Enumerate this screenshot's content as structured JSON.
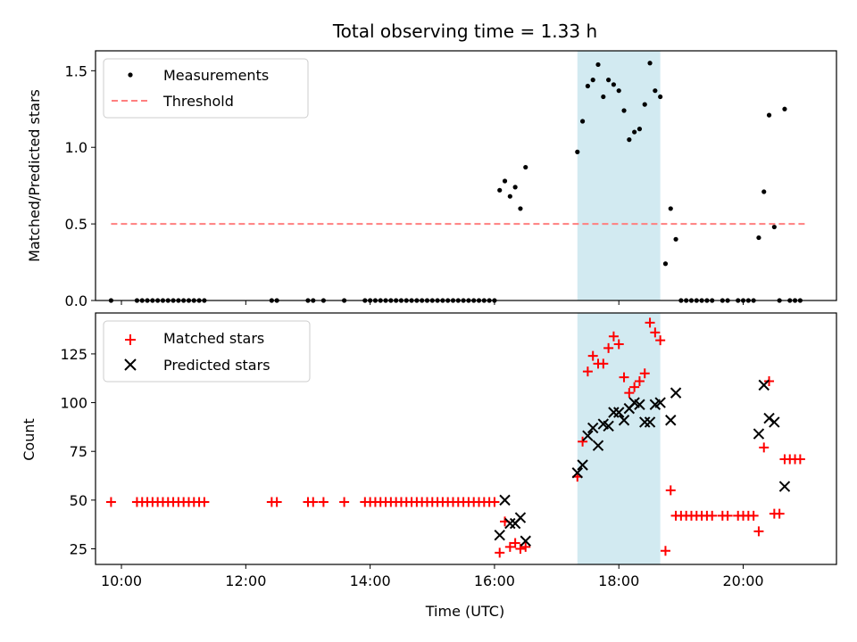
{
  "chart_data": [
    {
      "type": "scatter",
      "title": "Total observing time = 1.33 h",
      "ylabel": "Matched/Predicted stars",
      "xlabel": "",
      "xlim": [
        "09:35",
        "21:30"
      ],
      "ylim": [
        0,
        1.63
      ],
      "yticks": [
        "0.0",
        "0.5",
        "1.0",
        "1.5"
      ],
      "shaded_span": {
        "x0": "17:20",
        "x1": "18:40",
        "color": "#add8e6"
      },
      "legend": {
        "position": "upper left",
        "entries": [
          "Measurements",
          "Threshold"
        ]
      },
      "series": [
        {
          "name": "Measurements",
          "color": "#000000",
          "marker": "dot",
          "points": [
            [
              "09:50",
              0
            ],
            [
              "10:15",
              0
            ],
            [
              "10:20",
              0
            ],
            [
              "10:25",
              0
            ],
            [
              "10:30",
              0
            ],
            [
              "10:35",
              0
            ],
            [
              "10:40",
              0
            ],
            [
              "10:45",
              0
            ],
            [
              "10:50",
              0
            ],
            [
              "10:55",
              0
            ],
            [
              "11:00",
              0
            ],
            [
              "11:05",
              0
            ],
            [
              "11:10",
              0
            ],
            [
              "11:15",
              0
            ],
            [
              "11:20",
              0
            ],
            [
              "12:25",
              0
            ],
            [
              "12:30",
              0
            ],
            [
              "13:00",
              0
            ],
            [
              "13:05",
              0
            ],
            [
              "13:15",
              0
            ],
            [
              "13:35",
              0
            ],
            [
              "13:55",
              0
            ],
            [
              "14:00",
              0
            ],
            [
              "14:05",
              0
            ],
            [
              "14:10",
              0
            ],
            [
              "14:15",
              0
            ],
            [
              "14:20",
              0
            ],
            [
              "14:25",
              0
            ],
            [
              "14:30",
              0
            ],
            [
              "14:35",
              0
            ],
            [
              "14:40",
              0
            ],
            [
              "14:45",
              0
            ],
            [
              "14:50",
              0
            ],
            [
              "14:55",
              0
            ],
            [
              "15:00",
              0
            ],
            [
              "15:05",
              0
            ],
            [
              "15:10",
              0
            ],
            [
              "15:15",
              0
            ],
            [
              "15:20",
              0
            ],
            [
              "15:25",
              0
            ],
            [
              "15:30",
              0
            ],
            [
              "15:35",
              0
            ],
            [
              "15:40",
              0
            ],
            [
              "15:45",
              0
            ],
            [
              "15:50",
              0
            ],
            [
              "15:55",
              0
            ],
            [
              "16:00",
              0
            ],
            [
              "16:05",
              0.72
            ],
            [
              "16:10",
              0.78
            ],
            [
              "16:15",
              0.68
            ],
            [
              "16:20",
              0.74
            ],
            [
              "16:25",
              0.6
            ],
            [
              "16:30",
              0.87
            ],
            [
              "17:20",
              0.97
            ],
            [
              "17:25",
              1.17
            ],
            [
              "17:30",
              1.4
            ],
            [
              "17:35",
              1.44
            ],
            [
              "17:40",
              1.54
            ],
            [
              "17:45",
              1.33
            ],
            [
              "17:50",
              1.44
            ],
            [
              "17:55",
              1.41
            ],
            [
              "18:00",
              1.37
            ],
            [
              "18:05",
              1.24
            ],
            [
              "18:10",
              1.05
            ],
            [
              "18:15",
              1.1
            ],
            [
              "18:20",
              1.12
            ],
            [
              "18:25",
              1.28
            ],
            [
              "18:30",
              1.55
            ],
            [
              "18:35",
              1.37
            ],
            [
              "18:40",
              1.33
            ],
            [
              "18:45",
              0.24
            ],
            [
              "18:50",
              0.6
            ],
            [
              "18:55",
              0.4
            ],
            [
              "19:00",
              0
            ],
            [
              "19:05",
              0
            ],
            [
              "19:10",
              0
            ],
            [
              "19:15",
              0
            ],
            [
              "19:20",
              0
            ],
            [
              "19:25",
              0
            ],
            [
              "19:30",
              0
            ],
            [
              "19:40",
              0
            ],
            [
              "19:45",
              0
            ],
            [
              "19:55",
              0
            ],
            [
              "20:00",
              0
            ],
            [
              "20:05",
              0
            ],
            [
              "20:10",
              0
            ],
            [
              "20:15",
              0.41
            ],
            [
              "20:20",
              0.71
            ],
            [
              "20:25",
              1.21
            ],
            [
              "20:30",
              0.48
            ],
            [
              "20:35",
              0
            ],
            [
              "20:40",
              1.25
            ],
            [
              "20:45",
              0
            ],
            [
              "20:50",
              0
            ],
            [
              "20:55",
              0
            ]
          ]
        },
        {
          "name": "Threshold",
          "color": "#ff7f7f",
          "style": "dashed",
          "points": [
            [
              "09:50",
              0.5
            ],
            [
              "21:00",
              0.5
            ]
          ]
        }
      ]
    },
    {
      "type": "scatter",
      "title": "",
      "ylabel": "Count",
      "xlabel": "Time (UTC)",
      "xlim": [
        "09:35",
        "21:30"
      ],
      "ylim": [
        17,
        146
      ],
      "yticks": [
        "25",
        "50",
        "75",
        "100",
        "125"
      ],
      "xticks": [
        "10:00",
        "12:00",
        "14:00",
        "16:00",
        "18:00",
        "20:00"
      ],
      "shaded_span": {
        "x0": "17:20",
        "x1": "18:40",
        "color": "#add8e6"
      },
      "legend": {
        "position": "upper left",
        "entries": [
          "Matched stars",
          "Predicted stars"
        ]
      },
      "series": [
        {
          "name": "Matched stars",
          "color": "#ff0000",
          "marker": "plus",
          "points": [
            [
              "09:50",
              49
            ],
            [
              "10:15",
              49
            ],
            [
              "10:20",
              49
            ],
            [
              "10:25",
              49
            ],
            [
              "10:30",
              49
            ],
            [
              "10:35",
              49
            ],
            [
              "10:40",
              49
            ],
            [
              "10:45",
              49
            ],
            [
              "10:50",
              49
            ],
            [
              "10:55",
              49
            ],
            [
              "11:00",
              49
            ],
            [
              "11:05",
              49
            ],
            [
              "11:10",
              49
            ],
            [
              "11:15",
              49
            ],
            [
              "11:20",
              49
            ],
            [
              "12:25",
              49
            ],
            [
              "12:30",
              49
            ],
            [
              "13:00",
              49
            ],
            [
              "13:05",
              49
            ],
            [
              "13:15",
              49
            ],
            [
              "13:35",
              49
            ],
            [
              "13:55",
              49
            ],
            [
              "14:00",
              49
            ],
            [
              "14:05",
              49
            ],
            [
              "14:10",
              49
            ],
            [
              "14:15",
              49
            ],
            [
              "14:20",
              49
            ],
            [
              "14:25",
              49
            ],
            [
              "14:30",
              49
            ],
            [
              "14:35",
              49
            ],
            [
              "14:40",
              49
            ],
            [
              "14:45",
              49
            ],
            [
              "14:50",
              49
            ],
            [
              "14:55",
              49
            ],
            [
              "15:00",
              49
            ],
            [
              "15:05",
              49
            ],
            [
              "15:10",
              49
            ],
            [
              "15:15",
              49
            ],
            [
              "15:20",
              49
            ],
            [
              "15:25",
              49
            ],
            [
              "15:30",
              49
            ],
            [
              "15:35",
              49
            ],
            [
              "15:40",
              49
            ],
            [
              "15:45",
              49
            ],
            [
              "15:50",
              49
            ],
            [
              "15:55",
              49
            ],
            [
              "16:00",
              49
            ],
            [
              "16:05",
              23
            ],
            [
              "16:10",
              39
            ],
            [
              "16:15",
              26
            ],
            [
              "16:20",
              28
            ],
            [
              "16:25",
              25
            ],
            [
              "16:30",
              26
            ],
            [
              "17:20",
              62
            ],
            [
              "17:25",
              80
            ],
            [
              "17:30",
              116
            ],
            [
              "17:35",
              124
            ],
            [
              "17:40",
              120
            ],
            [
              "17:45",
              120
            ],
            [
              "17:50",
              128
            ],
            [
              "17:55",
              134
            ],
            [
              "18:00",
              130
            ],
            [
              "18:05",
              113
            ],
            [
              "18:10",
              105
            ],
            [
              "18:15",
              108
            ],
            [
              "18:20",
              111
            ],
            [
              "18:25",
              115
            ],
            [
              "18:30",
              141
            ],
            [
              "18:35",
              136
            ],
            [
              "18:40",
              132
            ],
            [
              "18:45",
              24
            ],
            [
              "18:50",
              55
            ],
            [
              "18:55",
              42
            ],
            [
              "19:00",
              42
            ],
            [
              "19:05",
              42
            ],
            [
              "19:10",
              42
            ],
            [
              "19:15",
              42
            ],
            [
              "19:20",
              42
            ],
            [
              "19:25",
              42
            ],
            [
              "19:30",
              42
            ],
            [
              "19:40",
              42
            ],
            [
              "19:45",
              42
            ],
            [
              "19:55",
              42
            ],
            [
              "20:00",
              42
            ],
            [
              "20:05",
              42
            ],
            [
              "20:10",
              42
            ],
            [
              "20:15",
              34
            ],
            [
              "20:20",
              77
            ],
            [
              "20:25",
              111
            ],
            [
              "20:30",
              43
            ],
            [
              "20:35",
              43
            ],
            [
              "20:40",
              71
            ],
            [
              "20:45",
              71
            ],
            [
              "20:50",
              71
            ],
            [
              "20:55",
              71
            ]
          ]
        },
        {
          "name": "Predicted stars",
          "color": "#000000",
          "marker": "x",
          "points": [
            [
              "16:05",
              32
            ],
            [
              "16:10",
              50
            ],
            [
              "16:15",
              38
            ],
            [
              "16:20",
              38
            ],
            [
              "16:25",
              41
            ],
            [
              "16:30",
              29
            ],
            [
              "17:20",
              64
            ],
            [
              "17:25",
              68
            ],
            [
              "17:30",
              83
            ],
            [
              "17:35",
              87
            ],
            [
              "17:40",
              78
            ],
            [
              "17:45",
              89
            ],
            [
              "17:50",
              88
            ],
            [
              "17:55",
              95
            ],
            [
              "18:00",
              95
            ],
            [
              "18:05",
              91
            ],
            [
              "18:10",
              97
            ],
            [
              "18:15",
              100
            ],
            [
              "18:20",
              99
            ],
            [
              "18:25",
              90
            ],
            [
              "18:30",
              90
            ],
            [
              "18:35",
              99
            ],
            [
              "18:40",
              100
            ],
            [
              "18:50",
              91
            ],
            [
              "18:55",
              105
            ],
            [
              "20:15",
              84
            ],
            [
              "20:20",
              109
            ],
            [
              "20:25",
              92
            ],
            [
              "20:30",
              90
            ],
            [
              "20:40",
              57
            ]
          ]
        }
      ]
    }
  ]
}
